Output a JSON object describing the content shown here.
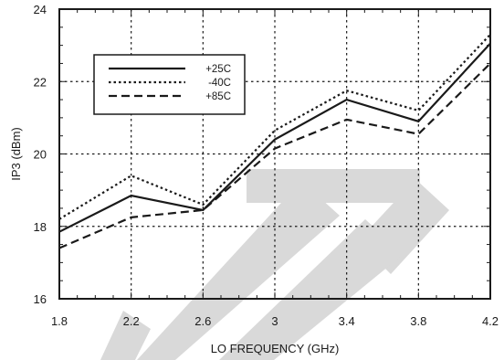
{
  "chart_data": {
    "type": "line",
    "xlabel": "LO FREQUENCY (GHz)",
    "ylabel": "IP3  (dBm)",
    "xlim": [
      1.8,
      4.2
    ],
    "ylim": [
      16,
      24
    ],
    "xticks": [
      "1.8",
      "2.2",
      "2.6",
      "3",
      "3.4",
      "3.8",
      "4.2"
    ],
    "yticks": [
      "16",
      "18",
      "20",
      "22",
      "24"
    ],
    "grid": true,
    "legend_position": "top-left",
    "x": [
      1.8,
      2.2,
      2.6,
      3.0,
      3.4,
      3.8,
      4.2
    ],
    "series": [
      {
        "name": "+25C",
        "style": "solid",
        "values": [
          17.85,
          18.85,
          18.45,
          20.4,
          21.5,
          20.9,
          23.05
        ]
      },
      {
        "name": "-40C",
        "style": "dotted",
        "values": [
          18.2,
          19.4,
          18.6,
          20.65,
          21.75,
          21.2,
          23.3
        ]
      },
      {
        "name": "+85C",
        "style": "dashed",
        "values": [
          17.4,
          18.25,
          18.45,
          20.15,
          20.95,
          20.55,
          22.5
        ]
      }
    ],
    "colors": {
      "line": "#1a1a1a",
      "grid": "#1a1a1a",
      "watermark": "#d9d9d9"
    }
  }
}
